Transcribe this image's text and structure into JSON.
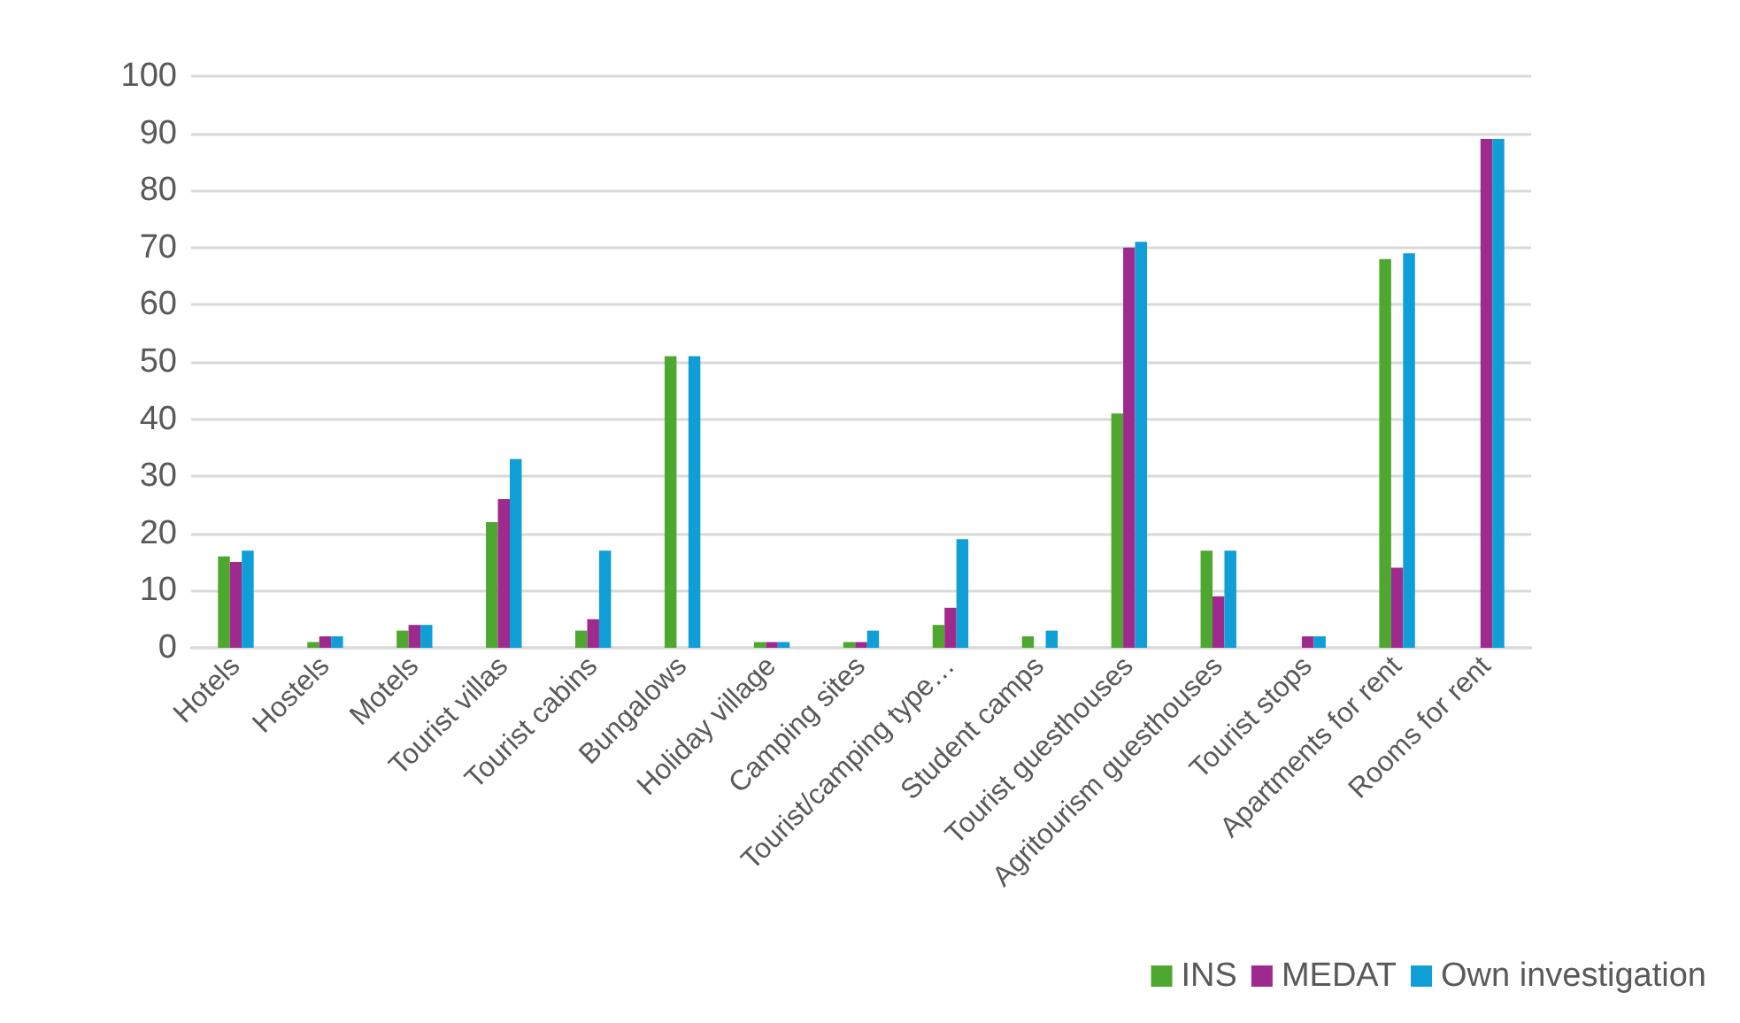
{
  "chart_data": {
    "type": "bar",
    "categories": [
      "Hotels",
      "Hostels",
      "Motels",
      "Tourist villas",
      "Tourist cabins",
      "Bungalows",
      "Holiday village",
      "Camping sites",
      "Tourist/camping type…",
      "Student camps",
      "Tourist guesthouses",
      "Agritourism guesthouses",
      "Tourist stops",
      "Apartments for rent",
      "Rooms for rent"
    ],
    "series": [
      {
        "name": "INS",
        "color": "#4ea72e",
        "values": [
          16,
          1,
          3,
          22,
          3,
          51,
          1,
          1,
          4,
          2,
          41,
          17,
          null,
          68,
          null
        ]
      },
      {
        "name": "MEDAT",
        "color": "#9e2a8e",
        "values": [
          15,
          2,
          4,
          26,
          5,
          null,
          1,
          1,
          7,
          null,
          70,
          9,
          2,
          14,
          89
        ]
      },
      {
        "name": "Own investigation",
        "color": "#0f9ed5",
        "values": [
          17,
          2,
          4,
          33,
          17,
          51,
          1,
          3,
          19,
          3,
          71,
          17,
          2,
          69,
          89
        ]
      }
    ],
    "ylim": [
      0,
      100
    ],
    "yticks": [
      0,
      10,
      20,
      30,
      40,
      50,
      60,
      70,
      80,
      90,
      100
    ],
    "grid": "y",
    "legend": "bottom right"
  }
}
